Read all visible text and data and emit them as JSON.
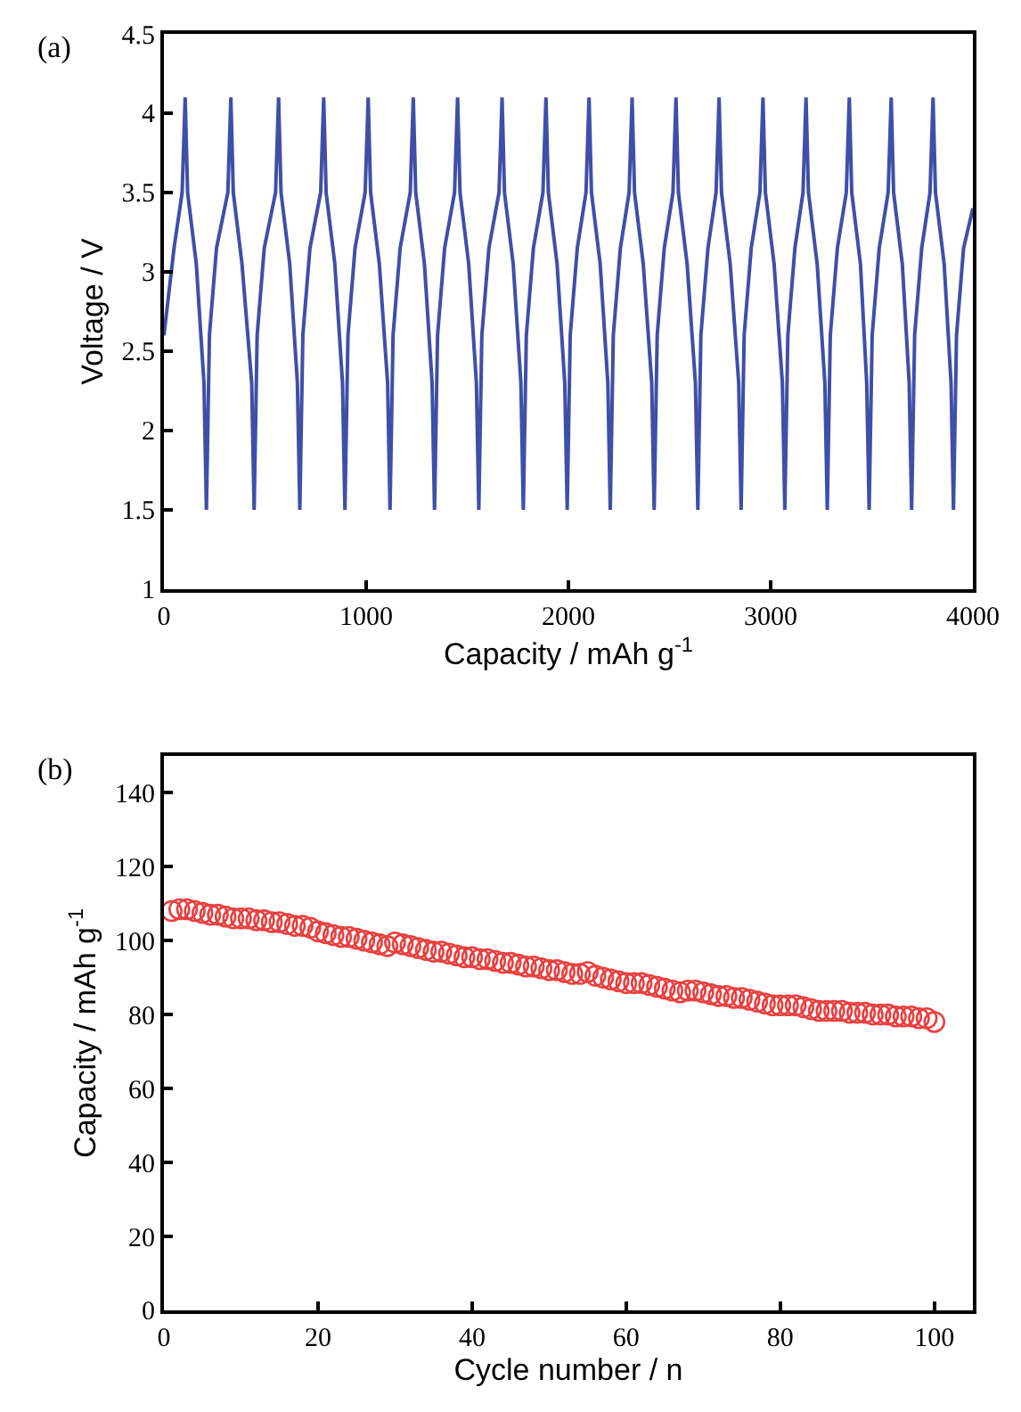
{
  "chart_data": [
    {
      "type": "line",
      "xlabel": "Capacity / mAh g$^{-1}$",
      "ylabel": "Voltage / V",
      "annotations": [
        "(a)"
      ],
      "xlim": [
        0,
        4000
      ],
      "xticks": [
        0,
        1000,
        2000,
        3000,
        4000
      ],
      "ylim": [
        1,
        4.5
      ],
      "yticks": [
        1,
        1.5,
        2,
        2.5,
        3,
        3.5,
        4,
        4.5
      ],
      "marker": "none",
      "line_style": "solid",
      "series": [
        {
          "color": "#3f4fa8",
          "x": [
            0,
            50,
            90,
            105,
            117,
            160,
            198,
            210,
            225,
            260,
            316,
            331,
            343,
            386,
            434,
            446,
            461,
            496,
            552,
            567,
            579,
            622,
            660,
            672,
            687,
            722,
            775,
            790,
            802,
            845,
            883,
            895,
            910,
            945,
            995,
            1010,
            1022,
            1065,
            1106,
            1118,
            1133,
            1168,
            1218,
            1233,
            1245,
            1288,
            1326,
            1338,
            1353,
            1388,
            1437,
            1452,
            1464,
            1507,
            1545,
            1557,
            1572,
            1607,
            1657,
            1672,
            1684,
            1727,
            1765,
            1777,
            1792,
            1827,
            1874,
            1889,
            1901,
            1944,
            1982,
            1994,
            2009,
            2044,
            2087,
            2102,
            2114,
            2157,
            2195,
            2207,
            2222,
            2257,
            2300,
            2315,
            2327,
            2370,
            2412,
            2424,
            2439,
            2474,
            2517,
            2532,
            2544,
            2587,
            2628,
            2640,
            2655,
            2690,
            2730,
            2745,
            2757,
            2800,
            2842,
            2854,
            2869,
            2904,
            2947,
            2962,
            2974,
            3017,
            3058,
            3070,
            3085,
            3120,
            3160,
            3175,
            3187,
            3230,
            3268,
            3280,
            3295,
            3330,
            3374,
            3389,
            3401,
            3444,
            3475,
            3487,
            3502,
            3537,
            3581,
            3596,
            3608,
            3651,
            3685,
            3697,
            3712,
            3747,
            3788,
            3803,
            3815,
            3858,
            3892,
            3904,
            3919,
            3954,
            4000
          ],
          "values": [
            2.6,
            3.15,
            3.5,
            4.1,
            3.5,
            3.05,
            2.3,
            1.5,
            2.6,
            3.15,
            3.5,
            4.1,
            3.5,
            3.05,
            2.3,
            1.5,
            2.6,
            3.15,
            3.5,
            4.1,
            3.5,
            3.05,
            2.3,
            1.5,
            2.6,
            3.15,
            3.5,
            4.1,
            3.5,
            3.05,
            2.3,
            1.5,
            2.6,
            3.15,
            3.5,
            4.1,
            3.5,
            3.05,
            2.3,
            1.5,
            2.6,
            3.15,
            3.5,
            4.1,
            3.5,
            3.05,
            2.3,
            1.5,
            2.6,
            3.15,
            3.5,
            4.1,
            3.5,
            3.05,
            2.3,
            1.5,
            2.6,
            3.15,
            3.5,
            4.1,
            3.5,
            3.05,
            2.3,
            1.5,
            2.6,
            3.15,
            3.5,
            4.1,
            3.5,
            3.05,
            2.3,
            1.5,
            2.6,
            3.15,
            3.5,
            4.1,
            3.5,
            3.05,
            2.3,
            1.5,
            2.6,
            3.15,
            3.5,
            4.1,
            3.5,
            3.05,
            2.3,
            1.5,
            2.6,
            3.15,
            3.5,
            4.1,
            3.5,
            3.05,
            2.3,
            1.5,
            2.6,
            3.15,
            3.5,
            4.1,
            3.5,
            3.05,
            2.3,
            1.5,
            2.6,
            3.15,
            3.5,
            4.1,
            3.5,
            3.05,
            2.3,
            1.5,
            2.6,
            3.15,
            3.5,
            4.1,
            3.5,
            3.05,
            2.3,
            1.5,
            2.6,
            3.15,
            3.5,
            4.1,
            3.5,
            3.05,
            2.3,
            1.5,
            2.6,
            3.15,
            3.5,
            4.1,
            3.5,
            3.05,
            2.3,
            1.5,
            2.6,
            3.15,
            3.5,
            4.1,
            3.5,
            3.05,
            2.3,
            1.5,
            2.6,
            3.15,
            3.4
          ]
        }
      ]
    },
    {
      "type": "scatter",
      "xlabel": "Cycle number / n",
      "ylabel": "Capacity / mAh g$^{-1}$",
      "annotations": [
        "(b)"
      ],
      "xlim": [
        0,
        105
      ],
      "xticks": [
        0,
        20,
        40,
        60,
        80,
        100
      ],
      "ylim": [
        0,
        150
      ],
      "yticks": [
        0,
        20,
        40,
        60,
        80,
        100,
        120,
        140
      ],
      "marker": "circle",
      "series": [
        {
          "color": "#e84040",
          "x": [
            1,
            2,
            3,
            4,
            5,
            6,
            7,
            8,
            9,
            10,
            11,
            12,
            13,
            14,
            15,
            16,
            17,
            18,
            19,
            20,
            21,
            22,
            23,
            24,
            25,
            26,
            27,
            28,
            29,
            30,
            31,
            32,
            33,
            34,
            35,
            36,
            37,
            38,
            39,
            40,
            41,
            42,
            43,
            44,
            45,
            46,
            47,
            48,
            49,
            50,
            51,
            52,
            53,
            54,
            55,
            56,
            57,
            58,
            59,
            60,
            61,
            62,
            63,
            64,
            65,
            66,
            67,
            68,
            69,
            70,
            71,
            72,
            73,
            74,
            75,
            76,
            77,
            78,
            79,
            80,
            81,
            82,
            83,
            84,
            85,
            86,
            87,
            88,
            89,
            90,
            91,
            92,
            93,
            94,
            95,
            96,
            97,
            98,
            99,
            100
          ],
          "values": [
            108,
            108.5,
            108.5,
            108,
            107.5,
            107,
            107,
            106.5,
            106,
            106,
            106,
            105.5,
            105.5,
            105,
            105,
            104.5,
            104,
            104,
            103.5,
            102.5,
            102,
            101.5,
            101,
            101,
            100.5,
            100,
            99.5,
            99,
            98.5,
            99.5,
            99,
            98.5,
            98,
            97.5,
            97,
            97,
            96.5,
            96,
            95.5,
            95.5,
            95,
            95,
            94.5,
            94,
            94,
            93.5,
            93,
            93,
            92.5,
            92,
            92,
            91.5,
            91,
            91,
            91.5,
            90.5,
            90,
            89.5,
            89,
            88.5,
            88.5,
            88.5,
            88,
            87.5,
            87,
            86.5,
            86,
            86.5,
            86.5,
            86,
            85.5,
            85,
            85,
            84.5,
            84.5,
            84,
            83.5,
            83,
            82.5,
            82.5,
            82.5,
            82.5,
            82,
            81.5,
            81,
            81,
            81,
            81,
            80.5,
            80.5,
            80.5,
            80,
            80,
            80,
            79.5,
            79.5,
            79.5,
            79,
            79,
            78
          ]
        }
      ]
    }
  ]
}
